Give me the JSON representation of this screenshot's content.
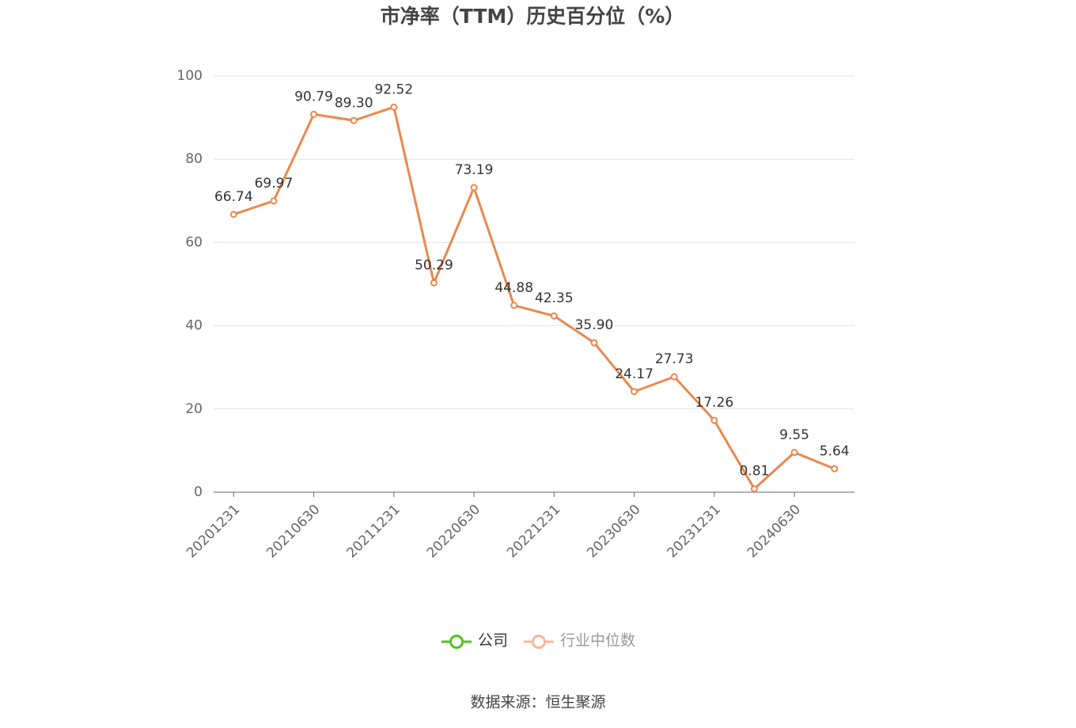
{
  "chart_data": {
    "type": "line",
    "title": "市净率（TTM）历史百分位（%）",
    "categories": [
      "20201231",
      null,
      "20210630",
      null,
      "20211231",
      null,
      "20220630",
      null,
      "20221231",
      null,
      "20230630",
      null,
      "20231231",
      null,
      "20240630",
      null
    ],
    "series": [
      {
        "name": "公司",
        "color": "#e8894e",
        "legend_color": "#52c41a",
        "values": [
          66.74,
          69.97,
          90.79,
          89.3,
          92.52,
          50.29,
          73.19,
          44.88,
          42.35,
          35.9,
          24.17,
          27.73,
          17.26,
          0.81,
          9.55,
          5.64
        ],
        "value_labels": [
          "66.74",
          "69.97",
          "90.79",
          "89.30",
          "92.52",
          "50.29",
          "73.19",
          "44.88",
          "42.35",
          "35.90",
          "24.17",
          "27.73",
          "17.26",
          "0.81",
          "9.55",
          "5.64"
        ]
      }
    ],
    "legend": [
      {
        "name": "公司",
        "color": "#52c41a"
      },
      {
        "name": "行业中位数",
        "color": "#f7b59b"
      }
    ],
    "ylim": [
      0,
      100
    ],
    "yticks": [
      0,
      20,
      40,
      60,
      80,
      100
    ],
    "grid": true,
    "source": "数据来源：恒生聚源"
  }
}
